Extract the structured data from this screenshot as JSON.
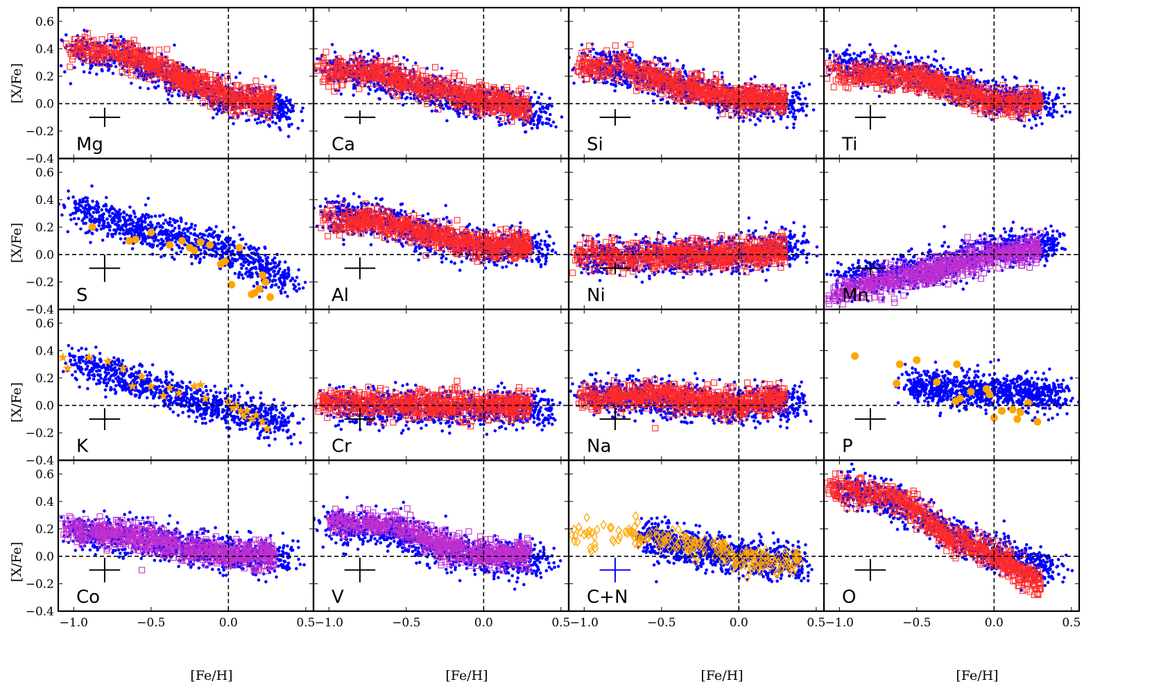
{
  "figure": {
    "ylabel": "[X/Fe]",
    "xlabel": "[Fe/H]",
    "colors": {
      "dwarf_points": "#0000ff",
      "red_squares": "#ff2a2a",
      "magenta_squares": "#bf2fcf",
      "orange_markers": "#ffa500",
      "axes": "#000000"
    }
  },
  "chart_data": {
    "type": "scatter",
    "layout": "4x4 grid of panels with shared axes",
    "xlim": [
      -1.1,
      0.55
    ],
    "ylim": [
      -0.4,
      0.7
    ],
    "x_ticks": [
      "−1.0",
      "−0.5",
      "0.0",
      "0.5"
    ],
    "y_ticks": [
      "−0.4",
      "−0.2",
      "0.0",
      "0.2",
      "0.4",
      "0.6"
    ],
    "reference_lines": {
      "x": 0.0,
      "y": 0.0,
      "style": "dashed"
    },
    "panels": [
      {
        "element": "Mg",
        "overlay": "red_squares",
        "err": {
          "x": -0.8,
          "y": -0.1,
          "xerr": 0.1,
          "yerr": 0.07
        },
        "trend": {
          "blue": [
            [
              -1.0,
              0.39
            ],
            [
              -0.7,
              0.35
            ],
            [
              -0.4,
              0.2
            ],
            [
              0.0,
              0.04
            ],
            [
              0.4,
              -0.05
            ]
          ],
          "overlay": [
            [
              -1.05,
              0.4
            ],
            [
              -0.7,
              0.37
            ],
            [
              -0.4,
              0.23
            ],
            [
              0.0,
              0.05
            ],
            [
              0.3,
              0.0
            ]
          ]
        }
      },
      {
        "element": "Ca",
        "overlay": "red_squares",
        "err": {
          "x": -0.8,
          "y": -0.1,
          "xerr": 0.1,
          "yerr": 0.05
        },
        "trend": {
          "blue": [
            [
              -1.0,
              0.25
            ],
            [
              -0.7,
              0.22
            ],
            [
              -0.4,
              0.12
            ],
            [
              0.0,
              0.0
            ],
            [
              0.4,
              -0.06
            ]
          ],
          "overlay": [
            [
              -1.08,
              0.24
            ],
            [
              -0.7,
              0.24
            ],
            [
              -0.4,
              0.13
            ],
            [
              0.0,
              0.02
            ],
            [
              0.3,
              -0.04
            ]
          ]
        }
      },
      {
        "element": "Si",
        "overlay": "red_squares",
        "err": {
          "x": -0.8,
          "y": -0.1,
          "xerr": 0.1,
          "yerr": 0.06
        },
        "trend": {
          "blue": [
            [
              -1.0,
              0.28
            ],
            [
              -0.7,
              0.24
            ],
            [
              -0.4,
              0.13
            ],
            [
              0.0,
              0.02
            ],
            [
              0.4,
              0.0
            ]
          ],
          "overlay": [
            [
              -1.05,
              0.28
            ],
            [
              -0.7,
              0.25
            ],
            [
              -0.4,
              0.13
            ],
            [
              0.0,
              0.04
            ],
            [
              0.3,
              0.02
            ]
          ]
        }
      },
      {
        "element": "Ti",
        "overlay": "red_squares",
        "err": {
          "x": -0.8,
          "y": -0.1,
          "xerr": 0.1,
          "yerr": 0.09
        },
        "trend": {
          "blue": [
            [
              -1.0,
              0.28
            ],
            [
              -0.6,
              0.24
            ],
            [
              -0.3,
              0.15
            ],
            [
              0.0,
              0.03
            ],
            [
              0.4,
              0.0
            ]
          ],
          "overlay": [
            [
              -1.08,
              0.24
            ],
            [
              -0.6,
              0.2
            ],
            [
              -0.3,
              0.12
            ],
            [
              0.0,
              0.01
            ],
            [
              0.3,
              0.01
            ]
          ]
        }
      },
      {
        "element": "S",
        "overlay": "orange_circles",
        "err": {
          "x": -0.8,
          "y": -0.1,
          "xerr": 0.1,
          "yerr": 0.1
        },
        "trend": {
          "blue": [
            [
              -1.0,
              0.32
            ],
            [
              -0.6,
              0.2
            ],
            [
              -0.3,
              0.12
            ],
            [
              0.0,
              0.02
            ],
            [
              0.4,
              -0.2
            ]
          ]
        },
        "overlay_points": [
          [
            -0.88,
            0.2
          ],
          [
            -0.64,
            0.1
          ],
          [
            -0.6,
            0.11
          ],
          [
            -0.5,
            0.16
          ],
          [
            -0.38,
            0.07
          ],
          [
            -0.3,
            0.1
          ],
          [
            -0.25,
            0.05
          ],
          [
            -0.22,
            0.03
          ],
          [
            -0.18,
            0.09
          ],
          [
            -0.12,
            0.07
          ],
          [
            -0.05,
            -0.07
          ],
          [
            -0.02,
            -0.05
          ],
          [
            0.02,
            -0.22
          ],
          [
            0.07,
            0.05
          ],
          [
            0.15,
            -0.29
          ],
          [
            0.17,
            -0.28
          ],
          [
            0.2,
            -0.25
          ],
          [
            0.22,
            -0.15
          ],
          [
            0.24,
            -0.2
          ],
          [
            0.27,
            -0.31
          ]
        ]
      },
      {
        "element": "Al",
        "overlay": "red_squares",
        "err": {
          "x": -0.8,
          "y": -0.1,
          "xerr": 0.1,
          "yerr": 0.08
        },
        "trend": {
          "blue": [
            [
              -1.0,
              0.28
            ],
            [
              -0.7,
              0.25
            ],
            [
              -0.4,
              0.15
            ],
            [
              0.0,
              0.05
            ],
            [
              0.4,
              0.05
            ]
          ],
          "overlay": [
            [
              -1.05,
              0.25
            ],
            [
              -0.7,
              0.25
            ],
            [
              -0.4,
              0.15
            ],
            [
              0.0,
              0.06
            ],
            [
              0.3,
              0.06
            ]
          ]
        }
      },
      {
        "element": "Ni",
        "overlay": "red_squares",
        "err": {
          "x": -0.8,
          "y": -0.1,
          "xerr": 0.1,
          "yerr": 0.04
        },
        "trend": {
          "blue": [
            [
              -1.0,
              -0.02
            ],
            [
              -0.6,
              -0.01
            ],
            [
              -0.3,
              -0.01
            ],
            [
              0.0,
              0.01
            ],
            [
              0.4,
              0.06
            ]
          ],
          "overlay": [
            [
              -1.08,
              -0.02
            ],
            [
              -0.6,
              -0.01
            ],
            [
              -0.3,
              -0.01
            ],
            [
              0.0,
              0.0
            ],
            [
              0.3,
              0.05
            ]
          ]
        }
      },
      {
        "element": "Mn",
        "overlay": "magenta_squares",
        "err": {
          "x": -0.8,
          "y": -0.1,
          "xerr": 0.1,
          "yerr": 0.05
        },
        "trend": {
          "blue": [
            [
              -1.0,
              -0.2
            ],
            [
              -0.6,
              -0.14
            ],
            [
              -0.3,
              -0.07
            ],
            [
              0.0,
              0.03
            ],
            [
              0.4,
              0.08
            ]
          ],
          "overlay": [
            [
              -1.08,
              -0.3
            ],
            [
              -0.6,
              -0.17
            ],
            [
              -0.3,
              -0.09
            ],
            [
              0.0,
              0.0
            ],
            [
              0.3,
              0.05
            ]
          ]
        }
      },
      {
        "element": "K",
        "overlay": "orange_stars",
        "err": {
          "x": -0.8,
          "y": -0.1,
          "xerr": 0.1,
          "yerr": 0.08
        },
        "trend": {
          "blue": [
            [
              -1.0,
              0.3
            ],
            [
              -0.6,
              0.18
            ],
            [
              -0.3,
              0.06
            ],
            [
              0.0,
              -0.04
            ],
            [
              0.4,
              -0.14
            ]
          ]
        },
        "overlay_points": [
          [
            -1.07,
            0.35
          ],
          [
            -1.04,
            0.27
          ],
          [
            -0.9,
            0.35
          ],
          [
            -0.78,
            0.32
          ],
          [
            -0.68,
            0.27
          ],
          [
            -0.62,
            0.14
          ],
          [
            -0.56,
            0.21
          ],
          [
            -0.5,
            0.14
          ],
          [
            -0.42,
            0.07
          ],
          [
            -0.38,
            0.13
          ],
          [
            -0.32,
            0.09
          ],
          [
            -0.22,
            0.14
          ],
          [
            -0.18,
            0.15
          ],
          [
            -0.15,
            0.05
          ],
          [
            0.0,
            0.03
          ],
          [
            0.03,
            -0.02
          ],
          [
            0.05,
            0.0
          ],
          [
            0.08,
            -0.04
          ],
          [
            0.1,
            -0.08
          ],
          [
            0.12,
            -0.04
          ],
          [
            0.15,
            -0.1
          ],
          [
            0.18,
            -0.07
          ],
          [
            0.22,
            -0.12
          ],
          [
            0.25,
            -0.17
          ]
        ]
      },
      {
        "element": "Cr",
        "overlay": "red_squares",
        "err": {
          "x": -0.8,
          "y": -0.1,
          "xerr": 0.1,
          "yerr": 0.08
        },
        "trend": {
          "blue": [
            [
              -1.0,
              0.0
            ],
            [
              -0.6,
              -0.01
            ],
            [
              -0.3,
              -0.02
            ],
            [
              0.0,
              -0.02
            ],
            [
              0.4,
              -0.02
            ]
          ],
          "overlay": [
            [
              -1.08,
              0.02
            ],
            [
              -0.6,
              0.01
            ],
            [
              -0.3,
              0.0
            ],
            [
              0.0,
              0.0
            ],
            [
              0.3,
              0.0
            ]
          ]
        }
      },
      {
        "element": "Na",
        "overlay": "red_squares",
        "err": {
          "x": -0.8,
          "y": -0.1,
          "xerr": 0.1,
          "yerr": 0.08
        },
        "trend": {
          "blue": [
            [
              -1.0,
              0.08
            ],
            [
              -0.6,
              0.06
            ],
            [
              -0.3,
              0.02
            ],
            [
              0.0,
              0.0
            ],
            [
              0.4,
              0.02
            ]
          ],
          "overlay": [
            [
              -1.05,
              0.05
            ],
            [
              -0.6,
              0.08
            ],
            [
              -0.3,
              0.05
            ],
            [
              0.0,
              0.01
            ],
            [
              0.3,
              0.06
            ]
          ]
        }
      },
      {
        "element": "P",
        "overlay": "orange_circles",
        "err": {
          "x": -0.8,
          "y": -0.1,
          "xerr": 0.1,
          "yerr": 0.08
        },
        "trend": {
          "blue": [
            [
              -0.55,
              0.15
            ],
            [
              -0.3,
              0.12
            ],
            [
              0.0,
              0.1
            ],
            [
              0.3,
              0.08
            ],
            [
              0.45,
              0.07
            ]
          ]
        },
        "overlay_points": [
          [
            -0.9,
            0.36
          ],
          [
            -0.63,
            0.16
          ],
          [
            -0.61,
            0.3
          ],
          [
            -0.5,
            0.33
          ],
          [
            -0.37,
            0.17
          ],
          [
            -0.25,
            0.03
          ],
          [
            -0.24,
            0.3
          ],
          [
            -0.22,
            0.05
          ],
          [
            -0.15,
            0.1
          ],
          [
            -0.05,
            0.12
          ],
          [
            -0.03,
            0.08
          ],
          [
            0.0,
            -0.09
          ],
          [
            0.05,
            -0.04
          ],
          [
            0.12,
            -0.03
          ],
          [
            0.15,
            -0.1
          ],
          [
            0.17,
            -0.05
          ],
          [
            0.22,
            0.02
          ],
          [
            0.28,
            -0.12
          ]
        ]
      },
      {
        "element": "Co",
        "overlay": "magenta_squares",
        "err": {
          "x": -0.8,
          "y": -0.1,
          "xerr": 0.1,
          "yerr": 0.09
        },
        "trend": {
          "blue": [
            [
              -1.0,
              0.18
            ],
            [
              -0.6,
              0.14
            ],
            [
              -0.3,
              0.07
            ],
            [
              0.0,
              0.01
            ],
            [
              0.4,
              0.0
            ]
          ],
          "overlay": [
            [
              -1.08,
              0.2
            ],
            [
              -0.6,
              0.15
            ],
            [
              -0.3,
              0.07
            ],
            [
              0.0,
              0.01
            ],
            [
              0.3,
              0.01
            ]
          ]
        }
      },
      {
        "element": "V",
        "overlay": "magenta_squares",
        "err": {
          "x": -0.8,
          "y": -0.1,
          "xerr": 0.1,
          "yerr": 0.09
        },
        "trend": {
          "blue": [
            [
              -1.0,
              0.22
            ],
            [
              -0.6,
              0.2
            ],
            [
              -0.3,
              0.06
            ],
            [
              0.0,
              -0.01
            ],
            [
              0.4,
              -0.03
            ]
          ],
          "overlay": [
            [
              -1.0,
              0.25
            ],
            [
              -0.6,
              0.24
            ],
            [
              -0.3,
              0.08
            ],
            [
              0.0,
              0.01
            ],
            [
              0.3,
              0.02
            ]
          ]
        }
      },
      {
        "element": "C+N",
        "overlay": "orange_diamonds",
        "err": {
          "x": -0.8,
          "y": -0.1,
          "xerr": 0.1,
          "yerr": 0.09,
          "color": "blue"
        },
        "trend": {
          "blue": [
            [
              -0.6,
              0.15
            ],
            [
              -0.4,
              0.08
            ],
            [
              -0.2,
              0.04
            ],
            [
              0.0,
              0.0
            ],
            [
              0.4,
              -0.06
            ]
          ],
          "overlay": [
            [
              -1.1,
              0.15
            ],
            [
              -0.7,
              0.17
            ],
            [
              -0.4,
              0.12
            ],
            [
              0.0,
              -0.02
            ],
            [
              0.4,
              -0.05
            ]
          ]
        }
      },
      {
        "element": "O",
        "overlay": "red_squares",
        "err": {
          "x": -0.8,
          "y": -0.1,
          "xerr": 0.1,
          "yerr": 0.08
        },
        "trend": {
          "blue": [
            [
              -1.0,
              0.5
            ],
            [
              -0.6,
              0.38
            ],
            [
              -0.3,
              0.18
            ],
            [
              0.0,
              0.03
            ],
            [
              0.4,
              -0.1
            ]
          ],
          "overlay": [
            [
              -1.08,
              0.5
            ],
            [
              -0.6,
              0.42
            ],
            [
              -0.3,
              0.15
            ],
            [
              0.0,
              0.0
            ],
            [
              0.3,
              -0.2
            ]
          ]
        }
      }
    ]
  }
}
